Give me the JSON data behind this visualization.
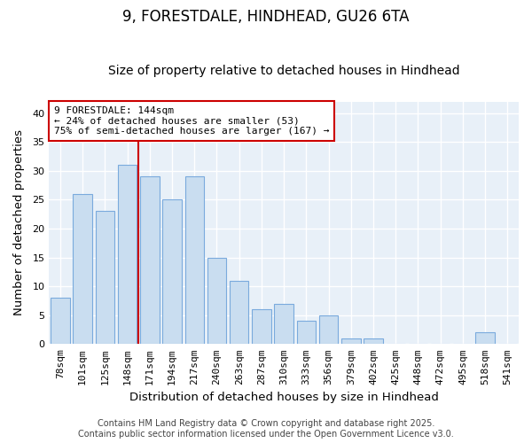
{
  "title": "9, FORESTDALE, HINDHEAD, GU26 6TA",
  "subtitle": "Size of property relative to detached houses in Hindhead",
  "xlabel": "Distribution of detached houses by size in Hindhead",
  "ylabel": "Number of detached properties",
  "categories": [
    "78sqm",
    "101sqm",
    "125sqm",
    "148sqm",
    "171sqm",
    "194sqm",
    "217sqm",
    "240sqm",
    "263sqm",
    "287sqm",
    "310sqm",
    "333sqm",
    "356sqm",
    "379sqm",
    "402sqm",
    "425sqm",
    "448sqm",
    "472sqm",
    "495sqm",
    "518sqm",
    "541sqm"
  ],
  "values": [
    8,
    26,
    23,
    31,
    29,
    25,
    29,
    15,
    11,
    6,
    7,
    4,
    5,
    1,
    1,
    0,
    0,
    0,
    0,
    2,
    0
  ],
  "bar_color": "#c9ddf0",
  "bar_edge_color": "#7aaadd",
  "vline_x": 3.5,
  "vline_color": "#cc0000",
  "annotation_text": "9 FORESTDALE: 144sqm\n← 24% of detached houses are smaller (53)\n75% of semi-detached houses are larger (167) →",
  "annotation_box_color": "#ffffff",
  "annotation_box_edge": "#cc0000",
  "ylim": [
    0,
    42
  ],
  "yticks": [
    0,
    5,
    10,
    15,
    20,
    25,
    30,
    35,
    40
  ],
  "footer": "Contains HM Land Registry data © Crown copyright and database right 2025.\nContains public sector information licensed under the Open Government Licence v3.0.",
  "fig_bg_color": "#ffffff",
  "plot_bg_color": "#e8f0f8",
  "grid_color": "#ffffff",
  "title_fontsize": 12,
  "subtitle_fontsize": 10,
  "tick_fontsize": 8,
  "label_fontsize": 9.5,
  "footer_fontsize": 7
}
